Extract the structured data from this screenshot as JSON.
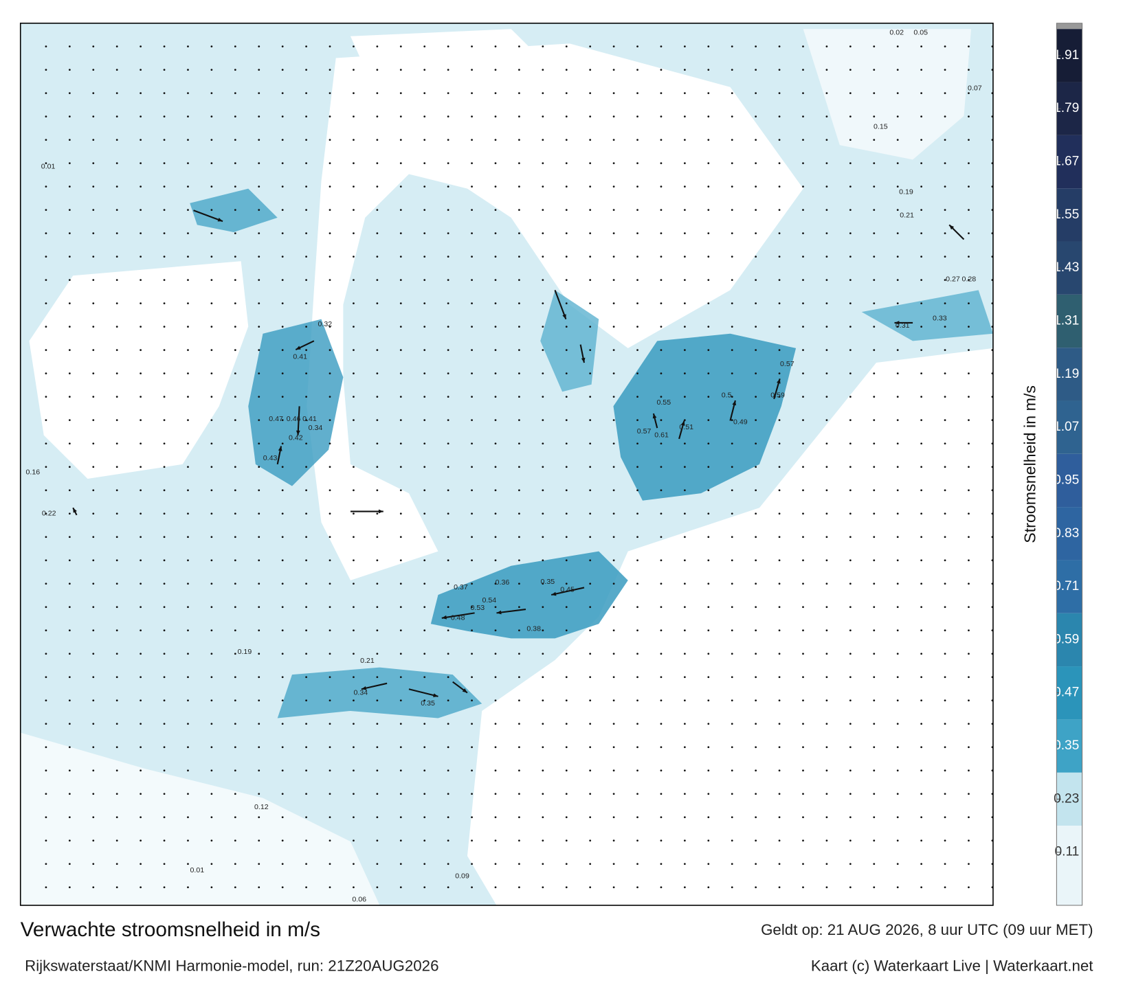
{
  "header": {
    "title": "Verwachte stroomsnelheid in m/s",
    "source": "Rijkswaterstaat/KNMI Harmonie-model, run: 21Z20AUG2026",
    "valid": "Geldt op: 21 AUG 2026, 8 uur UTC (09 uur MET)",
    "credit": "Kaart (c) Waterkaart Live | Waterkaart.net"
  },
  "colorbar": {
    "label": "Stroomsnelheid in m/s",
    "range": [
      -0.01,
      1.97
    ],
    "ticks": [
      0.11,
      0.23,
      0.35,
      0.47,
      0.59,
      0.71,
      0.83,
      0.95,
      1.07,
      1.19,
      1.31,
      1.43,
      1.55,
      1.67,
      1.79,
      1.91
    ],
    "colors": [
      "#eaf5f9",
      "#c3e4ee",
      "#3ea3c6",
      "#2b94ba",
      "#2b86ae",
      "#2e6ea6",
      "#2e65a1",
      "#2f5e9c",
      "#2f6390",
      "#2e5b86",
      "#2f5f70",
      "#28476f",
      "#253d66",
      "#212f5b",
      "#1c2647",
      "#161d36"
    ]
  },
  "speed_labels": [
    0.47,
    0.46,
    0.41,
    0.43,
    0.42,
    0.34,
    0.41,
    0.32,
    0.45,
    0.54,
    0.53,
    0.48,
    0.36,
    0.37,
    0.51,
    0.61,
    0.57,
    0.49,
    0.59,
    0.57,
    0.5,
    0.55,
    0.35,
    0.38,
    0.27,
    0.28,
    0.31,
    0.33,
    0.21,
    0.19,
    0.15,
    0.07,
    0.05,
    0.02,
    0.01,
    0.16,
    0.22,
    0.19,
    0.21,
    0.34,
    0.35,
    0.12,
    0.01,
    0.09,
    0.06
  ]
}
